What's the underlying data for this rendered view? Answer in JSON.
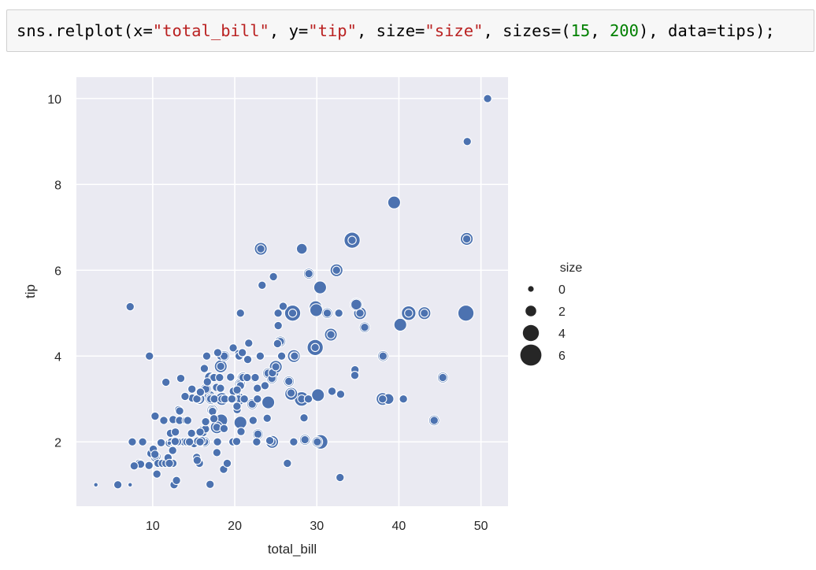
{
  "code_cell": {
    "tokens": [
      {
        "t": "sns.relplot(x=",
        "c": "plain"
      },
      {
        "t": "\"total_bill\"",
        "c": "str"
      },
      {
        "t": ", y=",
        "c": "plain"
      },
      {
        "t": "\"tip\"",
        "c": "str"
      },
      {
        "t": ", size=",
        "c": "plain"
      },
      {
        "t": "\"size\"",
        "c": "str"
      },
      {
        "t": ", sizes=(",
        "c": "plain"
      },
      {
        "t": "15",
        "c": "num"
      },
      {
        "t": ", ",
        "c": "plain"
      },
      {
        "t": "200",
        "c": "num"
      },
      {
        "t": "), data=tips);",
        "c": "plain"
      }
    ]
  },
  "chart_data": {
    "type": "scatter",
    "title": "",
    "xlabel": "total_bill",
    "ylabel": "tip",
    "xlim": [
      0.7,
      53.3
    ],
    "ylim": [
      0.5,
      10.5
    ],
    "xticks": [
      10,
      20,
      30,
      40,
      50
    ],
    "yticks": [
      2,
      4,
      6,
      8,
      10
    ],
    "grid": true,
    "background": "#eaeaf2",
    "marker_color": "#4c72b0",
    "legend": {
      "title": "size",
      "placement": "right",
      "entries": [
        {
          "label": "0",
          "size": 0
        },
        {
          "label": "2",
          "size": 2
        },
        {
          "label": "4",
          "size": 4
        },
        {
          "label": "6",
          "size": 6
        }
      ]
    },
    "size_range": [
      1,
      6
    ],
    "points": [
      [
        3.07,
        1.0,
        1
      ],
      [
        7.25,
        1.0,
        1
      ],
      [
        5.75,
        1.0,
        2
      ],
      [
        7.25,
        5.15,
        2
      ],
      [
        8.77,
        2.0,
        2
      ],
      [
        9.55,
        1.45,
        2
      ],
      [
        9.6,
        4.0,
        2
      ],
      [
        8.35,
        1.5,
        2
      ],
      [
        8.52,
        1.48,
        2
      ],
      [
        7.74,
        1.44,
        2
      ],
      [
        7.51,
        2.0,
        2
      ],
      [
        9.78,
        1.73,
        2
      ],
      [
        10.07,
        1.83,
        2
      ],
      [
        10.33,
        1.67,
        2
      ],
      [
        10.27,
        1.71,
        2
      ],
      [
        10.29,
        2.6,
        2
      ],
      [
        10.51,
        1.25,
        2
      ],
      [
        10.65,
        1.5,
        2
      ],
      [
        11.02,
        1.98,
        2
      ],
      [
        11.17,
        1.5,
        2
      ],
      [
        11.35,
        2.5,
        2
      ],
      [
        11.59,
        1.5,
        2
      ],
      [
        11.61,
        3.39,
        2
      ],
      [
        11.87,
        1.63,
        2
      ],
      [
        12.02,
        1.97,
        2
      ],
      [
        12.16,
        2.2,
        2
      ],
      [
        12.26,
        2.0,
        2
      ],
      [
        12.43,
        1.8,
        2
      ],
      [
        12.46,
        1.5,
        2
      ],
      [
        12.48,
        2.52,
        2
      ],
      [
        12.6,
        1.0,
        2
      ],
      [
        12.69,
        2.0,
        2
      ],
      [
        12.74,
        2.01,
        2
      ],
      [
        12.9,
        1.1,
        2
      ],
      [
        13.0,
        2.0,
        2
      ],
      [
        13.16,
        2.75,
        2
      ],
      [
        13.27,
        2.5,
        2
      ],
      [
        13.28,
        2.72,
        2
      ],
      [
        13.37,
        2.0,
        2
      ],
      [
        13.42,
        3.48,
        2
      ],
      [
        13.81,
        2.0,
        2
      ],
      [
        13.94,
        3.06,
        2
      ],
      [
        14.07,
        2.5,
        2
      ],
      [
        14.26,
        2.5,
        2
      ],
      [
        14.52,
        2.0,
        2
      ],
      [
        14.73,
        2.2,
        2
      ],
      [
        14.78,
        3.23,
        2
      ],
      [
        14.83,
        3.02,
        2
      ],
      [
        15.04,
        1.96,
        2
      ],
      [
        15.36,
        1.64,
        2
      ],
      [
        15.48,
        2.02,
        2
      ],
      [
        15.53,
        3.0,
        2
      ],
      [
        15.69,
        1.5,
        2
      ],
      [
        15.81,
        3.16,
        2
      ],
      [
        15.98,
        2.03,
        2
      ],
      [
        16.0,
        2.0,
        2
      ],
      [
        16.21,
        2.0,
        2
      ],
      [
        16.29,
        3.71,
        2
      ],
      [
        16.31,
        2.0,
        2
      ],
      [
        16.43,
        2.3,
        2
      ],
      [
        16.47,
        3.23,
        2
      ],
      [
        16.58,
        4.0,
        2
      ],
      [
        16.99,
        1.01,
        2
      ],
      [
        17.07,
        3.0,
        2
      ],
      [
        17.26,
        2.74,
        2
      ],
      [
        17.29,
        2.71,
        2
      ],
      [
        17.31,
        3.5,
        2
      ],
      [
        17.47,
        3.5,
        2
      ],
      [
        17.51,
        3.0,
        2
      ],
      [
        17.78,
        3.27,
        2
      ],
      [
        17.81,
        2.34,
        2
      ],
      [
        17.89,
        2.0,
        2
      ],
      [
        18.15,
        3.5,
        2
      ],
      [
        18.26,
        3.25,
        2
      ],
      [
        18.28,
        4.0,
        2
      ],
      [
        18.29,
        3.76,
        2
      ],
      [
        18.43,
        3.0,
        2
      ],
      [
        18.64,
        1.36,
        2
      ],
      [
        18.69,
        2.31,
        2
      ],
      [
        18.71,
        4.0,
        2
      ],
      [
        19.08,
        1.5,
        2
      ],
      [
        19.44,
        3.0,
        2
      ],
      [
        19.49,
        3.51,
        2
      ],
      [
        19.65,
        3.0,
        2
      ],
      [
        19.77,
        2.0,
        2
      ],
      [
        19.81,
        4.19,
        2
      ],
      [
        19.82,
        3.18,
        2
      ],
      [
        20.23,
        2.01,
        2
      ],
      [
        20.27,
        2.83,
        2
      ],
      [
        20.29,
        2.75,
        2
      ],
      [
        20.45,
        3.0,
        2
      ],
      [
        20.49,
        4.06,
        2
      ],
      [
        20.53,
        4.0,
        2
      ],
      [
        20.65,
        3.35,
        2
      ],
      [
        20.76,
        2.24,
        2
      ],
      [
        20.92,
        4.08,
        2
      ],
      [
        21.01,
        3.5,
        2
      ],
      [
        21.16,
        3.0,
        2
      ],
      [
        21.58,
        3.92,
        2
      ],
      [
        21.7,
        4.3,
        2
      ],
      [
        22.12,
        2.88,
        2
      ],
      [
        22.23,
        2.5,
        2
      ],
      [
        22.42,
        3.48,
        2
      ],
      [
        22.49,
        3.5,
        2
      ],
      [
        22.67,
        2.0,
        2
      ],
      [
        22.76,
        3.0,
        2
      ],
      [
        22.82,
        2.18,
        2
      ],
      [
        23.1,
        4.0,
        2
      ],
      [
        23.17,
        6.5,
        2
      ],
      [
        23.33,
        5.65,
        2
      ],
      [
        23.68,
        3.31,
        2
      ],
      [
        24.06,
        3.6,
        2
      ],
      [
        24.27,
        2.03,
        2
      ],
      [
        24.52,
        3.48,
        2
      ],
      [
        24.55,
        2.0,
        2
      ],
      [
        24.59,
        3.61,
        2
      ],
      [
        25.0,
        3.75,
        2
      ],
      [
        25.21,
        4.29,
        2
      ],
      [
        25.29,
        4.71,
        2
      ],
      [
        25.56,
        4.34,
        2
      ],
      [
        25.71,
        4.0,
        2
      ],
      [
        26.41,
        1.5,
        2
      ],
      [
        26.59,
        3.41,
        2
      ],
      [
        26.86,
        3.14,
        2
      ],
      [
        27.05,
        5.0,
        2
      ],
      [
        27.18,
        2.0,
        2
      ],
      [
        27.2,
        4.0,
        2
      ],
      [
        27.28,
        4.0,
        2
      ],
      [
        28.15,
        3.0,
        2
      ],
      [
        28.44,
        2.56,
        2
      ],
      [
        28.97,
        3.0,
        2
      ],
      [
        29.03,
        5.92,
        2
      ],
      [
        29.8,
        4.2,
        2
      ],
      [
        30.06,
        2.0,
        2
      ],
      [
        31.27,
        5.0,
        2
      ],
      [
        31.71,
        4.5,
        2
      ],
      [
        32.4,
        6.0,
        2
      ],
      [
        32.68,
        5.0,
        2
      ],
      [
        32.83,
        1.17,
        2
      ],
      [
        34.3,
        6.7,
        2
      ],
      [
        34.65,
        3.68,
        2
      ],
      [
        35.26,
        5.0,
        2
      ],
      [
        35.83,
        4.67,
        2
      ],
      [
        38.01,
        3.0,
        2
      ],
      [
        38.07,
        4.0,
        2
      ],
      [
        40.55,
        3.0,
        2
      ],
      [
        41.19,
        5.0,
        2
      ],
      [
        43.11,
        5.0,
        2
      ],
      [
        44.3,
        2.5,
        2
      ],
      [
        45.35,
        3.5,
        2
      ],
      [
        48.27,
        6.73,
        2
      ],
      [
        48.33,
        9.0,
        2
      ],
      [
        50.81,
        10.0,
        2
      ],
      [
        25.89,
        5.16,
        2
      ],
      [
        28.55,
        2.05,
        2
      ],
      [
        22.82,
        2.18,
        2
      ],
      [
        24.71,
        5.85,
        2
      ],
      [
        20.69,
        5.0,
        2
      ],
      [
        15.38,
        3.0,
        2
      ],
      [
        17.92,
        4.08,
        2
      ],
      [
        12.03,
        1.5,
        2
      ],
      [
        14.15,
        2.0,
        2
      ],
      [
        13.03,
        2.0,
        2
      ],
      [
        19.8,
        3.0,
        2
      ],
      [
        25.56,
        4.34,
        3
      ],
      [
        38.73,
        3.0,
        3
      ],
      [
        24.55,
        2.0,
        4
      ],
      [
        29.85,
        5.14,
        4
      ],
      [
        48.17,
        5.0,
        6
      ],
      [
        34.81,
        5.2,
        3
      ],
      [
        27.05,
        5.0,
        6
      ],
      [
        30.46,
        2.0,
        5
      ],
      [
        20.9,
        3.5,
        3
      ],
      [
        17.82,
        1.75,
        2
      ],
      [
        28.17,
        6.5,
        3
      ],
      [
        39.42,
        7.58,
        4
      ],
      [
        26.88,
        3.12,
        4
      ],
      [
        16.97,
        3.5,
        3
      ],
      [
        20.69,
        2.45,
        4
      ],
      [
        15.42,
        1.57,
        2
      ],
      [
        19.82,
        3.18,
        2
      ],
      [
        21.16,
        3.0,
        2
      ],
      [
        30.4,
        5.6,
        4
      ],
      [
        24.59,
        3.61,
        4
      ],
      [
        22.76,
        3.0,
        2
      ],
      [
        18.35,
        2.5,
        4
      ],
      [
        34.63,
        3.55,
        2
      ],
      [
        23.95,
        2.55,
        2
      ],
      [
        25.28,
        5.0,
        2
      ],
      [
        29.93,
        5.07,
        4
      ],
      [
        18.78,
        3.0,
        2
      ],
      [
        34.3,
        6.7,
        6
      ],
      [
        35.26,
        5.0,
        4
      ],
      [
        40.17,
        4.73,
        4
      ],
      [
        21.5,
        3.5,
        2
      ],
      [
        32.9,
        3.11,
        2
      ],
      [
        31.85,
        3.18,
        2
      ],
      [
        22.75,
        3.25,
        2
      ],
      [
        28.44,
        2.56,
        2
      ],
      [
        15.98,
        2.03,
        2
      ],
      [
        15.77,
        2.23,
        2
      ],
      [
        29.03,
        5.92,
        3
      ],
      [
        27.28,
        4.0,
        2
      ],
      [
        20.08,
        3.15,
        3
      ],
      [
        21.01,
        3.5,
        3
      ],
      [
        22.67,
        2.0,
        2
      ],
      [
        18.26,
        3.25,
        2
      ],
      [
        19.49,
        3.51,
        2
      ],
      [
        20.27,
        2.83,
        2
      ],
      [
        23.68,
        3.31,
        2
      ],
      [
        30.14,
        3.09,
        4
      ],
      [
        26.41,
        1.5,
        2
      ],
      [
        28.97,
        3.0,
        2
      ],
      [
        32.68,
        5.0,
        2
      ],
      [
        16.45,
        2.47,
        2
      ],
      [
        14.48,
        2.0,
        2
      ],
      [
        17.46,
        2.54,
        2
      ],
      [
        16.66,
        3.4,
        2
      ],
      [
        15.81,
        3.16,
        2
      ],
      [
        20.45,
        3.0,
        4
      ],
      [
        38.07,
        4.0,
        3
      ],
      [
        27.2,
        4.0,
        4
      ],
      [
        23.33,
        5.65,
        2
      ],
      [
        29.8,
        4.2,
        6
      ],
      [
        25.0,
        3.75,
        4
      ],
      [
        28.15,
        3.0,
        5
      ],
      [
        24.52,
        3.48,
        3
      ],
      [
        41.19,
        5.0,
        5
      ],
      [
        21.7,
        4.3,
        2
      ],
      [
        48.27,
        6.73,
        4
      ],
      [
        18.71,
        4.0,
        3
      ],
      [
        20.65,
        3.35,
        3
      ],
      [
        17.26,
        2.74,
        3
      ],
      [
        24.08,
        2.92,
        4
      ],
      [
        26.59,
        3.41,
        3
      ],
      [
        45.35,
        3.5,
        3
      ],
      [
        30.06,
        2.0,
        3
      ],
      [
        13.94,
        3.06,
        2
      ],
      [
        18.43,
        3.0,
        4
      ],
      [
        22.23,
        2.5,
        2
      ],
      [
        32.4,
        6.0,
        4
      ],
      [
        31.27,
        5.0,
        3
      ],
      [
        16.04,
        2.24,
        3
      ],
      [
        43.11,
        5.0,
        4
      ],
      [
        10.34,
        1.66,
        3
      ],
      [
        21.01,
        3.5,
        3
      ],
      [
        24.06,
        3.6,
        3
      ],
      [
        20.65,
        3.35,
        3
      ],
      [
        16.31,
        2.0,
        3
      ],
      [
        20.69,
        3.31,
        2
      ],
      [
        16.93,
        3.07,
        3
      ],
      [
        31.71,
        4.5,
        4
      ],
      [
        22.12,
        2.88,
        3
      ],
      [
        44.3,
        2.5,
        3
      ],
      [
        25.21,
        4.29,
        2
      ],
      [
        38.01,
        3.0,
        4
      ],
      [
        39.42,
        7.58,
        4
      ],
      [
        20.76,
        2.24,
        2
      ],
      [
        20.29,
        3.21,
        2
      ],
      [
        26.86,
        3.14,
        2
      ],
      [
        15.69,
        3.0,
        3
      ],
      [
        24.27,
        2.03,
        2
      ],
      [
        20.92,
        4.08,
        2
      ],
      [
        22.82,
        2.18,
        3
      ],
      [
        17.07,
        3.0,
        3
      ],
      [
        19.65,
        3.0,
        2
      ],
      [
        35.83,
        4.67,
        3
      ],
      [
        40.55,
        3.0,
        2
      ],
      [
        12.02,
        1.97,
        1
      ],
      [
        15.77,
        2.0,
        2
      ],
      [
        34.81,
        5.2,
        4
      ],
      [
        16.47,
        3.23,
        3
      ],
      [
        12.74,
        2.01,
        2
      ],
      [
        20.23,
        2.01,
        2
      ],
      [
        12.76,
        2.23,
        2
      ],
      [
        28.55,
        2.05,
        3
      ],
      [
        18.29,
        3.76,
        4
      ],
      [
        17.81,
        2.34,
        4
      ],
      [
        21.58,
        3.92,
        2
      ],
      [
        23.17,
        6.5,
        4
      ]
    ]
  }
}
